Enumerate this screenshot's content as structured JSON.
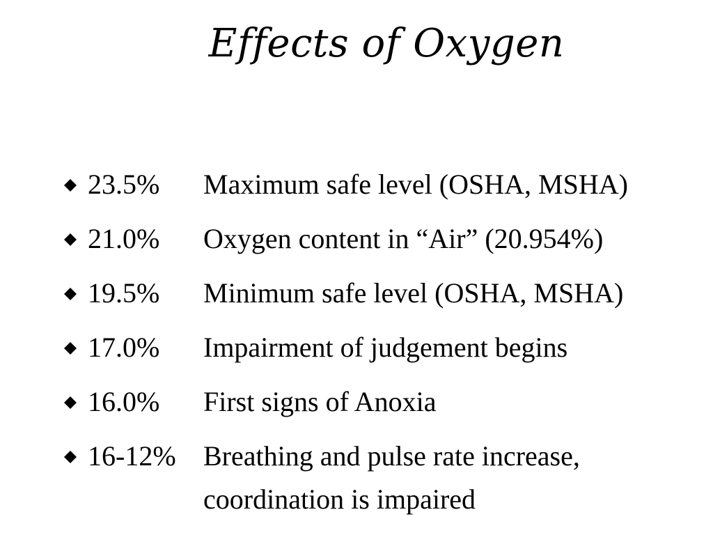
{
  "slide": {
    "title": "Effects of Oxygen",
    "items": [
      {
        "bullet_icon": "diamond-bullet-icon",
        "level": "23.5%",
        "description": "Maximum safe level (OSHA, MSHA)"
      },
      {
        "bullet_icon": "diamond-bullet-icon",
        "level": "21.0%",
        "description": "Oxygen content in “Air”  (20.954%)"
      },
      {
        "bullet_icon": "diamond-bullet-icon",
        "level": "19.5%",
        "description": "Minimum safe level (OSHA, MSHA)"
      },
      {
        "bullet_icon": "diamond-bullet-icon",
        "level": "17.0%",
        "description": "Impairment of judgement begins"
      },
      {
        "bullet_icon": "diamond-bullet-icon",
        "level": "16.0%",
        "description": "First signs of Anoxia"
      },
      {
        "bullet_icon": "diamond-bullet-icon",
        "level": "16-12%",
        "description": "Breathing and pulse rate increase,",
        "description_continued": "coordination is impaired"
      }
    ]
  },
  "colors": {
    "background": "#ffffff",
    "text": "#000000"
  }
}
